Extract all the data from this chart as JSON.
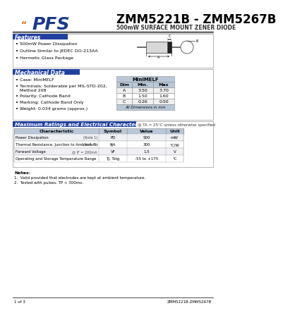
{
  "title": "ZMM5221B - ZMM5267B",
  "subtitle": "500mW SURFACE MOUNT ZENER DIODE",
  "bg_color": "#ffffff",
  "pfs_color_blue": "#1a3a8c",
  "pfs_color_orange": "#e07020",
  "features_title": "Features",
  "features": [
    "500mW Power Dissipation",
    "Outline Similar to JEDEC DO-213AA",
    "Hermetic Glass Package"
  ],
  "mech_title": "Mechanical Data",
  "mech_items": [
    "Case: MiniMELF",
    "Terminals: Solderable per MIL-STD-202,\n    Method 208",
    "Polarity: Cathode Band",
    "Marking: Cathode Band Only",
    "Weight: 0.034 grams (approx.)"
  ],
  "dim_table_title": "MiniMELF",
  "dim_headers": [
    "Dim",
    "Min.",
    "Max"
  ],
  "dim_rows": [
    [
      "A",
      "3.50",
      "3.70"
    ],
    [
      "B",
      "1.50",
      "1.60"
    ],
    [
      "C",
      "0.26",
      "0.50"
    ]
  ],
  "dim_note": "All Dimensions in mm",
  "ratings_title": "Maximum Ratings and Electrical Characteristics",
  "ratings_note": "@ TA = 25°C unless otherwise specified",
  "table_col_headers": [
    "Characteristic",
    "Symbol",
    "Value",
    "Unit"
  ],
  "table_rows": [
    [
      "Power Dissipation",
      "(Note 1)",
      "PD",
      "500",
      "mW"
    ],
    [
      "Thermal Resistance, Junction to Ambient Air",
      "(Note 1)",
      "θJA",
      "300",
      "°C/W"
    ],
    [
      "Forward Voltage",
      "@ IF = 200mA",
      "VF",
      "1.5",
      "V"
    ],
    [
      "Operating and Storage Temperature Range",
      "",
      "TJ, Tstg",
      "-55 to +175",
      "°C"
    ]
  ],
  "notes_label": "Notes:",
  "notes": [
    "1.  Valid provided that electrodes are kept at ambient temperature.",
    "2.  Tested with pulses, TP < 300ms."
  ],
  "footer_left": "1 of 3",
  "footer_right": "ZMM5221B-ZMM5267B",
  "section_header_bg": "#2040a0",
  "section_header_text": "#ffffff",
  "table_header_bg": "#b8c8d8",
  "ratings_header_bg": "#b8c8d8"
}
